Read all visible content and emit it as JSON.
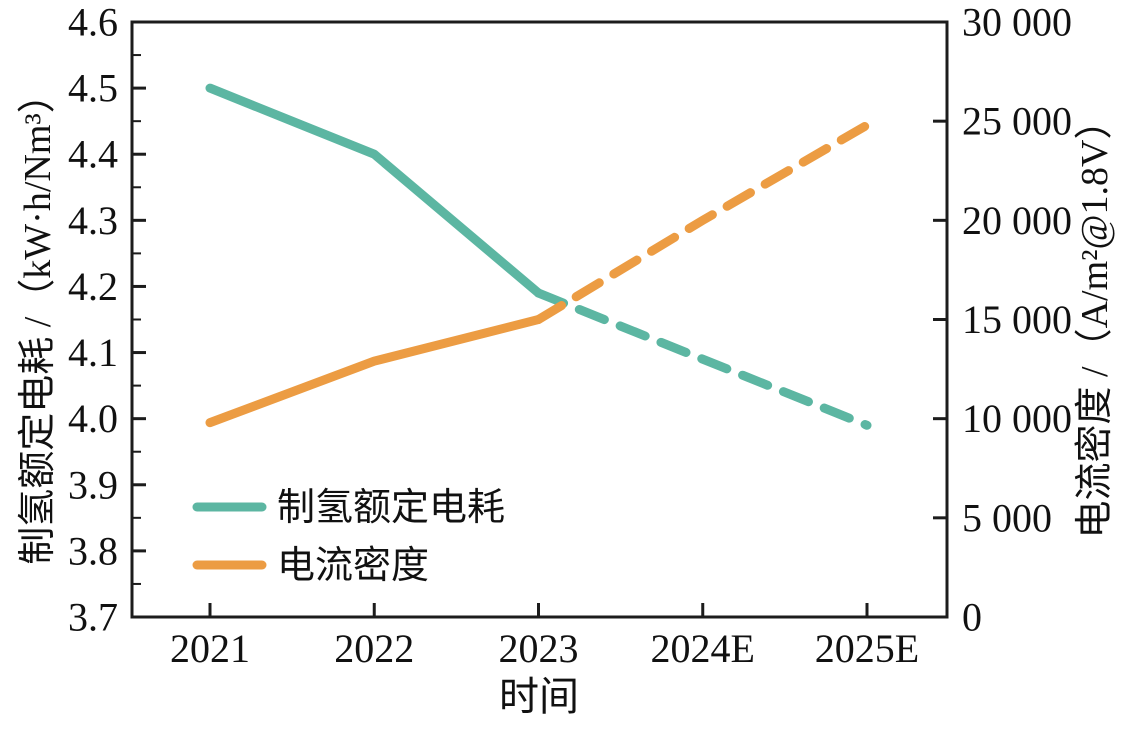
{
  "chart_data": {
    "type": "line",
    "title": "",
    "x": {
      "label": "时间",
      "categories": [
        "2021",
        "2022",
        "2023",
        "2024E",
        "2025E"
      ]
    },
    "left_axis": {
      "label": "制氢额定电耗 /（kW·h/Nm³）",
      "min": 3.7,
      "max": 4.6,
      "major_step": 0.1,
      "minor_step": 0.05,
      "tick_labels": [
        "4.6",
        "4.5",
        "4.4",
        "4.3",
        "4.2",
        "4.1",
        "4.0",
        "3.9",
        "3.8",
        "3.7"
      ]
    },
    "right_axis": {
      "label": "电流密度 /（A/m²@1.8V）",
      "min": 0,
      "max": 30000,
      "major_step": 5000,
      "tick_labels": [
        "30 000",
        "25 000",
        "20 000",
        "15 000",
        "10 000",
        "5 000",
        "0"
      ]
    },
    "series": [
      {
        "name": "制氢额定电耗",
        "axis": "left",
        "color": "#5cb6a2",
        "values": [
          4.5,
          4.4,
          4.19,
          4.09,
          3.99
        ],
        "dash_from_index": 2,
        "style_note": "solid 2021-2023, dashed forecast 2023-2025E"
      },
      {
        "name": "电流密度",
        "axis": "right",
        "color": "#ec9c43",
        "values": [
          9800,
          12900,
          15000,
          20000,
          24800
        ],
        "dash_from_index": 2,
        "style_note": "solid 2021-2023, dashed forecast 2023-2025E"
      }
    ],
    "legend": {
      "position": "inside-lower-left",
      "entries": [
        "制氢额定电耗",
        "电流密度"
      ]
    },
    "grid": "off"
  },
  "colors": {
    "frame": "#1c1c1c",
    "text": "#111111",
    "background": "#ffffff",
    "series_teal": "#5cb6a2",
    "series_orange": "#ec9c43"
  }
}
